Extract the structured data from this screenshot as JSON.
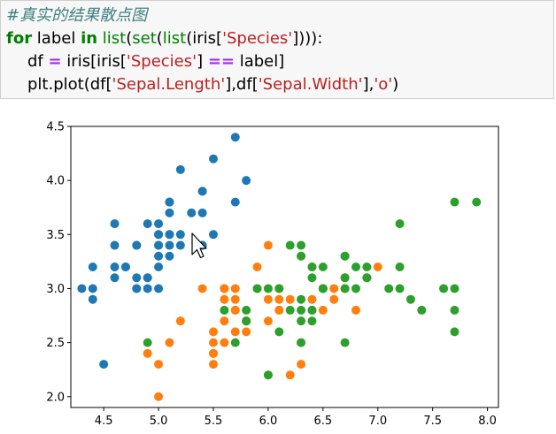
{
  "code": {
    "line1_comment": "#真实的结果散点图",
    "line2": {
      "kw_for": "for",
      "var": " label ",
      "kw_in": "in",
      "sp": " ",
      "fn_list1": "list",
      "p1": "(",
      "fn_set": "set",
      "p2": "(",
      "fn_list2": "list",
      "p3": "(iris[",
      "str": "'Species'",
      "p4": "]))):"
    },
    "line3": {
      "a": "df ",
      "op": "=",
      "b": " iris[iris[",
      "str": "'Species'",
      "c": "] ",
      "op2": "==",
      "d": " label]"
    },
    "line4": {
      "a": "plt.plot(df[",
      "str1": "'Sepal.Length'",
      "b": "],df[",
      "str2": "'Sepal.Width'",
      "c": "],",
      "str3": "'o'",
      "d": ")"
    }
  },
  "chart_data": {
    "type": "scatter",
    "title": "",
    "xlabel": "",
    "ylabel": "",
    "xlim": [
      4.2,
      8.1
    ],
    "ylim": [
      1.9,
      4.5
    ],
    "xticks": [
      "4.5",
      "5.0",
      "5.5",
      "6.0",
      "6.5",
      "7.0",
      "7.5",
      "8.0"
    ],
    "yticks": [
      "2.0",
      "2.5",
      "3.0",
      "3.5",
      "4.0",
      "4.5"
    ],
    "grid": false,
    "legend": "none",
    "colors": [
      "#1f77b4",
      "#ff7f0e",
      "#2ca02c"
    ],
    "series": [
      {
        "color": "#1f77b4",
        "points": [
          [
            5.1,
            3.5
          ],
          [
            4.9,
            3.0
          ],
          [
            4.7,
            3.2
          ],
          [
            4.6,
            3.1
          ],
          [
            5.0,
            3.6
          ],
          [
            5.4,
            3.9
          ],
          [
            4.6,
            3.4
          ],
          [
            5.0,
            3.4
          ],
          [
            4.4,
            2.9
          ],
          [
            4.9,
            3.1
          ],
          [
            5.4,
            3.7
          ],
          [
            4.8,
            3.4
          ],
          [
            4.8,
            3.0
          ],
          [
            4.3,
            3.0
          ],
          [
            5.8,
            4.0
          ],
          [
            5.7,
            4.4
          ],
          [
            5.4,
            3.9
          ],
          [
            5.1,
            3.5
          ],
          [
            5.7,
            3.8
          ],
          [
            5.1,
            3.8
          ],
          [
            5.4,
            3.4
          ],
          [
            5.1,
            3.7
          ],
          [
            4.6,
            3.6
          ],
          [
            5.1,
            3.3
          ],
          [
            4.8,
            3.4
          ],
          [
            5.0,
            3.0
          ],
          [
            5.0,
            3.4
          ],
          [
            5.2,
            3.5
          ],
          [
            5.2,
            3.4
          ],
          [
            4.7,
            3.2
          ],
          [
            4.8,
            3.1
          ],
          [
            5.4,
            3.4
          ],
          [
            5.2,
            4.1
          ],
          [
            5.5,
            4.2
          ],
          [
            4.9,
            3.1
          ],
          [
            5.0,
            3.2
          ],
          [
            5.5,
            3.5
          ],
          [
            4.9,
            3.6
          ],
          [
            4.4,
            3.0
          ],
          [
            5.1,
            3.4
          ],
          [
            5.0,
            3.5
          ],
          [
            4.5,
            2.3
          ],
          [
            4.4,
            3.2
          ],
          [
            5.0,
            3.5
          ],
          [
            5.1,
            3.8
          ],
          [
            4.8,
            3.0
          ],
          [
            5.1,
            3.8
          ],
          [
            4.6,
            3.2
          ],
          [
            5.3,
            3.7
          ],
          [
            5.0,
            3.3
          ]
        ]
      },
      {
        "color": "#ff7f0e",
        "points": [
          [
            7.0,
            3.2
          ],
          [
            6.4,
            3.2
          ],
          [
            6.9,
            3.1
          ],
          [
            5.5,
            2.3
          ],
          [
            6.5,
            2.8
          ],
          [
            5.7,
            2.8
          ],
          [
            6.3,
            3.3
          ],
          [
            4.9,
            2.4
          ],
          [
            6.6,
            2.9
          ],
          [
            5.2,
            2.7
          ],
          [
            5.0,
            2.0
          ],
          [
            5.9,
            3.0
          ],
          [
            6.0,
            2.2
          ],
          [
            6.1,
            2.9
          ],
          [
            5.6,
            2.9
          ],
          [
            6.7,
            3.1
          ],
          [
            5.6,
            3.0
          ],
          [
            5.8,
            2.7
          ],
          [
            6.2,
            2.2
          ],
          [
            5.6,
            2.5
          ],
          [
            5.9,
            3.2
          ],
          [
            6.1,
            2.8
          ],
          [
            6.3,
            2.5
          ],
          [
            6.1,
            2.8
          ],
          [
            6.4,
            2.9
          ],
          [
            6.6,
            3.0
          ],
          [
            6.8,
            2.8
          ],
          [
            6.7,
            3.0
          ],
          [
            6.0,
            2.9
          ],
          [
            5.7,
            2.6
          ],
          [
            5.5,
            2.4
          ],
          [
            5.5,
            2.4
          ],
          [
            5.8,
            2.7
          ],
          [
            6.0,
            2.7
          ],
          [
            5.4,
            3.0
          ],
          [
            6.0,
            3.4
          ],
          [
            6.7,
            3.1
          ],
          [
            6.3,
            2.3
          ],
          [
            5.6,
            3.0
          ],
          [
            5.5,
            2.5
          ],
          [
            5.5,
            2.6
          ],
          [
            6.1,
            3.0
          ],
          [
            5.8,
            2.6
          ],
          [
            5.0,
            2.3
          ],
          [
            5.6,
            2.7
          ],
          [
            5.7,
            3.0
          ],
          [
            5.7,
            2.9
          ],
          [
            6.2,
            2.9
          ],
          [
            5.1,
            2.5
          ],
          [
            5.7,
            2.8
          ]
        ]
      },
      {
        "color": "#2ca02c",
        "points": [
          [
            6.3,
            3.3
          ],
          [
            5.8,
            2.7
          ],
          [
            7.1,
            3.0
          ],
          [
            6.3,
            2.9
          ],
          [
            6.5,
            3.0
          ],
          [
            7.6,
            3.0
          ],
          [
            4.9,
            2.5
          ],
          [
            7.3,
            2.9
          ],
          [
            6.7,
            2.5
          ],
          [
            7.2,
            3.6
          ],
          [
            6.5,
            3.2
          ],
          [
            6.4,
            2.7
          ],
          [
            6.8,
            3.0
          ],
          [
            5.7,
            2.5
          ],
          [
            5.8,
            2.8
          ],
          [
            6.4,
            3.2
          ],
          [
            6.5,
            3.0
          ],
          [
            7.7,
            3.8
          ],
          [
            7.7,
            2.6
          ],
          [
            6.0,
            2.2
          ],
          [
            6.9,
            3.2
          ],
          [
            5.6,
            2.8
          ],
          [
            7.7,
            2.8
          ],
          [
            6.3,
            2.7
          ],
          [
            6.7,
            3.3
          ],
          [
            7.2,
            3.2
          ],
          [
            6.2,
            2.8
          ],
          [
            6.1,
            3.0
          ],
          [
            6.4,
            2.8
          ],
          [
            7.2,
            3.0
          ],
          [
            7.4,
            2.8
          ],
          [
            7.9,
            3.8
          ],
          [
            6.4,
            2.8
          ],
          [
            6.3,
            2.8
          ],
          [
            6.1,
            2.6
          ],
          [
            7.7,
            3.0
          ],
          [
            6.3,
            3.4
          ],
          [
            6.4,
            3.1
          ],
          [
            6.0,
            3.0
          ],
          [
            6.9,
            3.1
          ],
          [
            6.7,
            3.1
          ],
          [
            6.9,
            3.1
          ],
          [
            5.8,
            2.7
          ],
          [
            6.8,
            3.2
          ],
          [
            6.7,
            3.3
          ],
          [
            6.7,
            3.0
          ],
          [
            6.3,
            2.5
          ],
          [
            6.5,
            3.0
          ],
          [
            6.2,
            3.4
          ],
          [
            5.9,
            3.0
          ]
        ]
      }
    ]
  },
  "cursor": {
    "icon": "mouse-pointer-icon"
  }
}
